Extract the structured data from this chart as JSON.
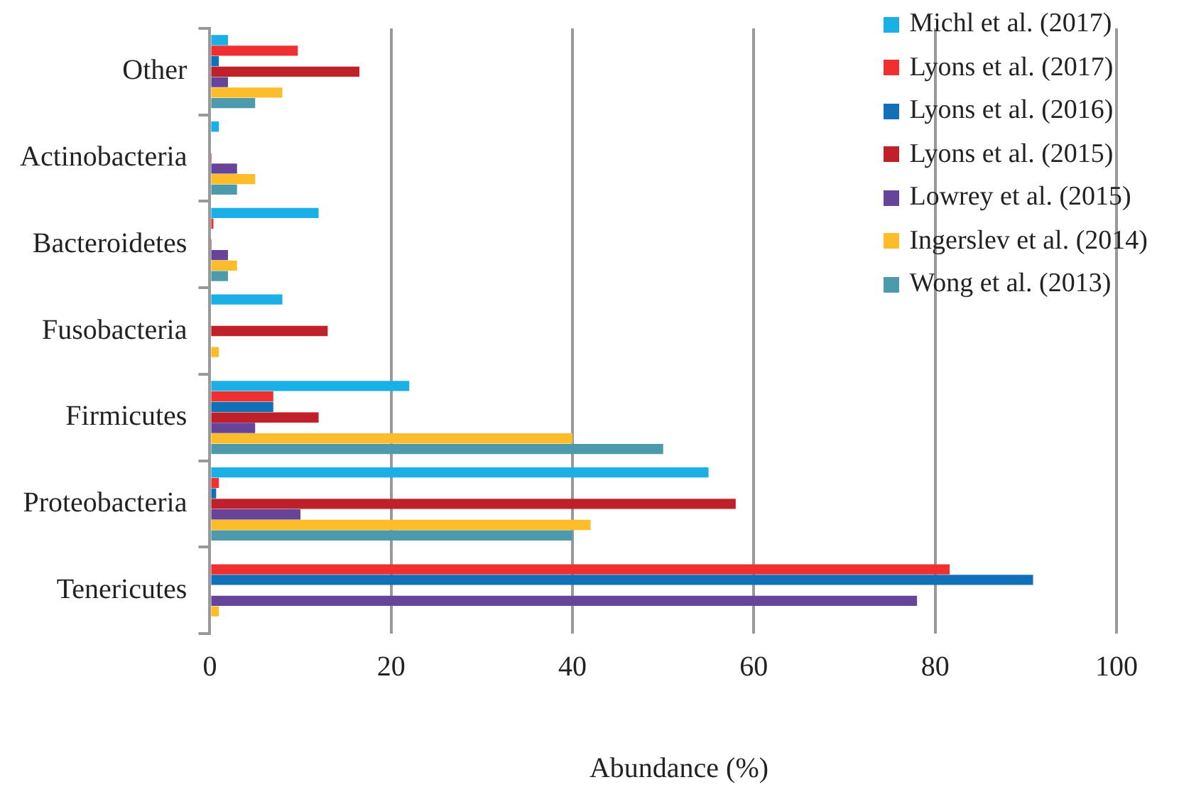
{
  "chart_data": {
    "type": "bar",
    "orientation": "horizontal",
    "xlabel": "Abundance (%)",
    "categories": [
      "Other",
      "Actinobacteria",
      "Bacteroidetes",
      "Fusobacteria",
      "Firmicutes",
      "Proteobacteria",
      "Tenericutes"
    ],
    "series": [
      {
        "name": "Michl et al. (2017)",
        "color": "#1aafe6",
        "values": [
          2,
          1,
          12,
          8,
          22,
          55,
          0
        ]
      },
      {
        "name": "Lyons et al. (2017)",
        "color": "#f03030",
        "values": [
          9.7,
          0,
          0.4,
          0,
          7,
          1,
          81.6
        ]
      },
      {
        "name": "Lyons et al. (2016)",
        "color": "#1170b8",
        "values": [
          1,
          0,
          0,
          0,
          7,
          0.7,
          90.8
        ]
      },
      {
        "name": "Lyons et al. (2015)",
        "color": "#c0202a",
        "values": [
          16.5,
          0.2,
          0.2,
          13,
          12,
          58,
          0
        ]
      },
      {
        "name": "Lowrey et al. (2015)",
        "color": "#66449a",
        "values": [
          2,
          3,
          2,
          0,
          5,
          10,
          78
        ]
      },
      {
        "name": "Ingerslev et al. (2014)",
        "color": "#fdbd2a",
        "values": [
          8,
          5,
          3,
          1,
          40,
          42,
          1
        ]
      },
      {
        "name": "Wong et al. (2013)",
        "color": "#4e9aad",
        "values": [
          5,
          3,
          2,
          0,
          50,
          40,
          0
        ]
      }
    ],
    "xlim": [
      0,
      100
    ],
    "xticks": [
      0,
      20,
      40,
      60,
      80,
      100
    ],
    "grid": "x",
    "legend": "top right"
  }
}
